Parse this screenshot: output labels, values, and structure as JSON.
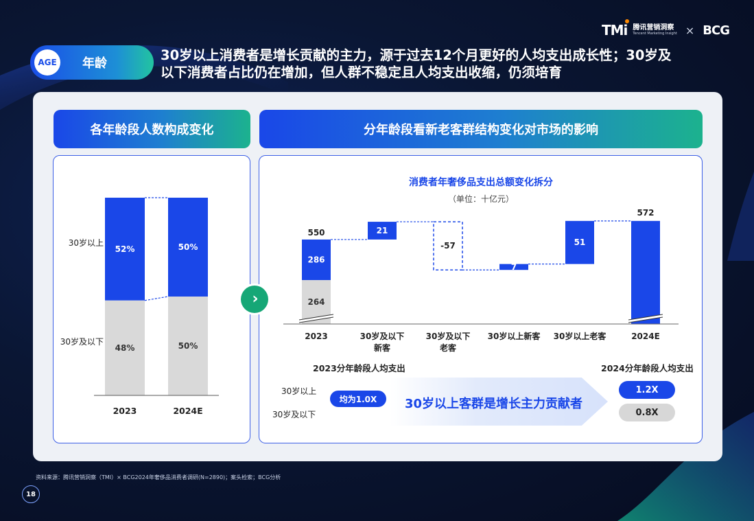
{
  "brand": {
    "tmi": "TMi",
    "tmi_cn": "腾讯营销洞察",
    "tmi_en": "Tencent Marketing Insight",
    "x": "×",
    "bcg": "BCG"
  },
  "tag": {
    "badge": "AGE",
    "label": "年龄"
  },
  "headline": {
    "line1": "30岁以上消费者是增长贡献的主力，源于过去12个月更好的人均支出成长性；30岁及",
    "line2": "以下消费者占比仍在增加，但人群不稳定且人均支出收缩，仍须培育"
  },
  "left_section": {
    "title": "各年龄段人数构成变化"
  },
  "right_section": {
    "title": "分年龄段看新老客群结构变化对市场的影响"
  },
  "colors": {
    "blue": "#1a47e8",
    "grey": "#d9d9d9",
    "green": "#16a776"
  },
  "chart_data": [
    {
      "type": "bar",
      "stacked": true,
      "percent": true,
      "title": "",
      "categories": [
        "2023",
        "2024E"
      ],
      "series": [
        {
          "name": "30岁以上",
          "values": [
            52,
            50
          ],
          "labels": [
            "52%",
            "50%"
          ],
          "color": "#1a47e8"
        },
        {
          "name": "30岁及以下",
          "values": [
            48,
            50
          ],
          "labels": [
            "48%",
            "50%"
          ],
          "color": "#d9d9d9"
        }
      ]
    },
    {
      "type": "bar",
      "subtype": "waterfall",
      "title": "消费者年奢侈品支出总额变化拆分",
      "subtitle": "（单位：十亿元）",
      "categories": [
        "2023",
        "30岁及以下\n新客",
        "30岁及以下\n老客",
        "30岁以上新客",
        "30岁以上老客",
        "2024E"
      ],
      "category_lines": [
        [
          "2023"
        ],
        [
          "30岁及以下",
          "新客"
        ],
        [
          "30岁及以下",
          "老客"
        ],
        [
          "30岁以上新客"
        ],
        [
          "30岁以上老客"
        ],
        [
          "2024E"
        ]
      ],
      "values": [
        550,
        21,
        -57,
        7,
        51,
        572
      ],
      "labels": [
        "550",
        "21",
        "-57",
        "7",
        "51",
        "572"
      ],
      "stack_2023": {
        "upper": 286,
        "lower": 264,
        "upper_label": "286",
        "lower_label": "264"
      },
      "axis_break": true
    }
  ],
  "spending": {
    "left_title": "2023分年龄段人均支出",
    "right_title": "2024分年龄段人均支出",
    "row_over30": "30岁以上",
    "row_under30": "30岁及以下",
    "baseline": "均为1.0X",
    "message": "30岁以上客群是增长主力贡献者",
    "over30_2024": "1.2X",
    "under30_2024": "0.8X"
  },
  "footer": {
    "source": "资料来源：腾讯营销洞察（TMI）× BCG2024年奢侈品消费者调研(N=2890)；案头检索；BCG分析",
    "page": "18"
  }
}
